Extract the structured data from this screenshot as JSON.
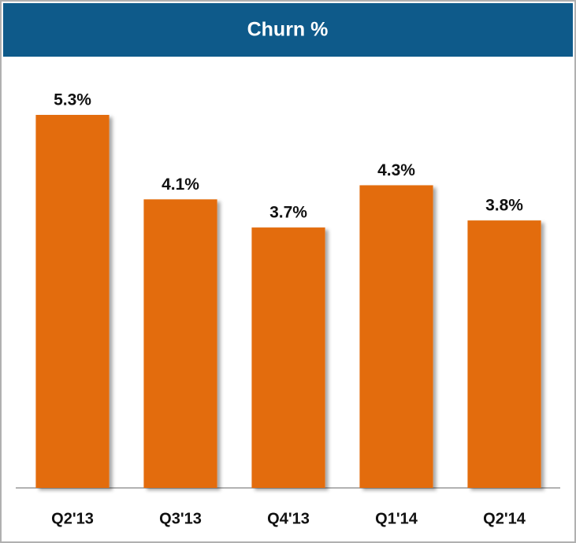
{
  "chart_data": {
    "type": "bar",
    "title": "Churn %",
    "categories": [
      "Q2'13",
      "Q3'13",
      "Q4'13",
      "Q1'14",
      "Q2'14"
    ],
    "values": [
      5.3,
      4.1,
      3.7,
      4.3,
      3.8
    ],
    "value_labels": [
      "5.3%",
      "4.1%",
      "3.7%",
      "4.3%",
      "3.8%"
    ],
    "color": "#e36c0a",
    "ylim": [
      0,
      6
    ]
  }
}
